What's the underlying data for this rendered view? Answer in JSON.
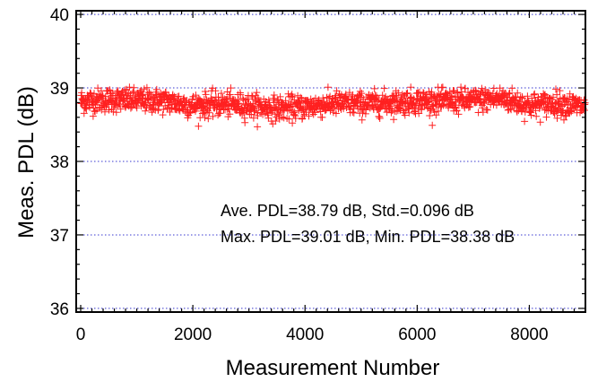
{
  "chart_data": {
    "type": "scatter",
    "title": "",
    "xlabel": "Measurement Number",
    "ylabel": "Meas. PDL (dB)",
    "xlim": [
      -80,
      9000
    ],
    "ylim": [
      35.95,
      40.05
    ],
    "x_ticks": [
      0,
      2000,
      4000,
      6000,
      8000
    ],
    "x_tick_labels": [
      "0",
      "2000",
      "4000",
      "6000",
      "8000"
    ],
    "y_ticks": [
      36,
      37,
      38,
      39,
      40
    ],
    "y_tick_labels": [
      "36",
      "37",
      "38",
      "39",
      "40"
    ],
    "grid": "horizontal dotted at major y ticks",
    "marker": "+",
    "series": [
      {
        "color": "#ff2020",
        "n_points": 9000,
        "x_range": [
          0,
          9000
        ],
        "mean": 38.79,
        "std": 0.096,
        "max": 39.01,
        "min": 38.38,
        "trend_x": [
          0,
          500,
          1000,
          1500,
          2000,
          2500,
          3000,
          3500,
          4000,
          4500,
          5000,
          5500,
          6000,
          6500,
          7000,
          7500,
          8000,
          8500,
          9000
        ],
        "trend_y": [
          38.82,
          38.84,
          38.83,
          38.82,
          38.76,
          38.78,
          38.76,
          38.72,
          38.74,
          38.79,
          38.78,
          38.8,
          38.82,
          38.82,
          38.83,
          38.86,
          38.76,
          38.79,
          38.74
        ]
      }
    ],
    "annotations": [
      "Ave. PDL=38.79 dB, Std.=0.096 dB",
      "Max. PDL=39.01 dB, Min. PDL=38.38 dB"
    ]
  }
}
